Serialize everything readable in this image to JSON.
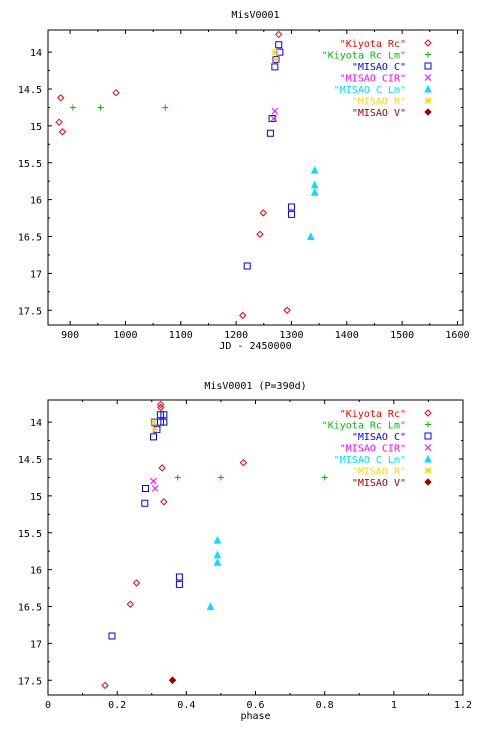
{
  "colors": {
    "kiyota_rc": "#ff0000",
    "kiyota_rc_lm": "#00c000",
    "misao_c": "#0000ff",
    "misao_cir": "#ff00ff",
    "misao_c_lm": "#00e0ff",
    "misao_r": "#ffd700",
    "misao_v": "#a00000"
  },
  "chart_data": [
    {
      "type": "scatter",
      "title": "MisV0001",
      "xlabel": "JD - 2450000",
      "ylabel": "",
      "xlim": [
        860,
        1610
      ],
      "ylim": [
        17.7,
        13.7
      ],
      "y_inverted": true,
      "xticks": [
        900,
        1000,
        1100,
        1200,
        1300,
        1400,
        1500,
        1600
      ],
      "yticks": [
        14,
        14.5,
        15,
        15.5,
        16,
        16.5,
        17,
        17.5
      ],
      "legend_position": "top-right",
      "series": [
        {
          "name": "\"Kiyota Rc\"",
          "marker": "diamond",
          "color_key": "kiyota_rc",
          "x": [
            880,
            883,
            886,
            983,
            1212,
            1243,
            1249,
            1292,
            1277
          ],
          "y": [
            14.95,
            14.62,
            15.08,
            14.55,
            17.57,
            16.47,
            16.18,
            17.5,
            13.76
          ]
        },
        {
          "name": "\"Kiyota Rc Lm\"",
          "marker": "plus",
          "color_key": "kiyota_rc_lm",
          "x": [
            905,
            955,
            1072
          ],
          "y": [
            14.75,
            14.75,
            14.75
          ]
        },
        {
          "name": "\"MISAO C\"",
          "marker": "square",
          "color_key": "misao_c",
          "x": [
            1262,
            1265,
            1270,
            1272,
            1277,
            1279,
            1220,
            1300,
            1300
          ],
          "y": [
            15.1,
            14.9,
            14.2,
            14.1,
            13.9,
            14.0,
            16.9,
            16.1,
            16.2
          ]
        },
        {
          "name": "\"MISAO CIR\"",
          "marker": "cross",
          "color_key": "misao_cir",
          "x": [
            1270,
            1268
          ],
          "y": [
            14.8,
            14.9
          ]
        },
        {
          "name": "\"MISAO C Lm\"",
          "marker": "triangle",
          "color_key": "misao_c_lm",
          "x": [
            1342,
            1342,
            1342,
            1335
          ],
          "y": [
            15.6,
            15.8,
            15.9,
            16.5
          ]
        },
        {
          "name": "\"MISAO R\"",
          "marker": "star",
          "color_key": "misao_r",
          "x": [
            1270,
            1272
          ],
          "y": [
            14.0,
            14.1
          ]
        },
        {
          "name": "\"MISAO V\"",
          "marker": "filled-diamond",
          "color_key": "misao_v",
          "x": [],
          "y": []
        }
      ]
    },
    {
      "type": "scatter",
      "title": "MisV0001 (P=390d)",
      "xlabel": "phase",
      "ylabel": "",
      "xlim": [
        0,
        1.2
      ],
      "ylim": [
        17.7,
        13.7
      ],
      "y_inverted": true,
      "xticks": [
        0,
        0.2,
        0.4,
        0.6,
        0.8,
        1,
        1.2
      ],
      "yticks": [
        14,
        14.5,
        15,
        15.5,
        16,
        16.5,
        17,
        17.5
      ],
      "legend_position": "top-right",
      "series": [
        {
          "name": "\"Kiyota Rc\"",
          "marker": "diamond",
          "color_key": "kiyota_rc",
          "x": [
            0.165,
            0.238,
            0.256,
            0.326,
            0.33,
            0.335,
            0.36,
            0.565,
            0.326
          ],
          "y": [
            17.57,
            16.47,
            16.18,
            13.76,
            14.62,
            15.08,
            17.5,
            14.55,
            13.8
          ]
        },
        {
          "name": "\"Kiyota Rc Lm\"",
          "marker": "plus",
          "color_key": "kiyota_rc_lm",
          "x": [
            0.375,
            0.5,
            0.8
          ],
          "y": [
            14.75,
            14.75,
            14.75
          ]
        },
        {
          "name": "\"MISAO C\"",
          "marker": "square",
          "color_key": "misao_c",
          "x": [
            0.185,
            0.28,
            0.282,
            0.305,
            0.308,
            0.315,
            0.325,
            0.325,
            0.335,
            0.335,
            0.38,
            0.38
          ],
          "y": [
            16.9,
            15.1,
            14.9,
            14.2,
            14.0,
            14.1,
            13.9,
            14.0,
            13.9,
            14.0,
            16.1,
            16.2
          ]
        },
        {
          "name": "\"MISAO CIR\"",
          "marker": "cross",
          "color_key": "misao_cir",
          "x": [
            0.305,
            0.31
          ],
          "y": [
            14.8,
            14.9
          ]
        },
        {
          "name": "\"MISAO C Lm\"",
          "marker": "triangle",
          "color_key": "misao_c_lm",
          "x": [
            0.49,
            0.49,
            0.49,
            0.47
          ],
          "y": [
            15.6,
            15.8,
            15.9,
            16.5
          ]
        },
        {
          "name": "\"MISAO R\"",
          "marker": "star",
          "color_key": "misao_r",
          "x": [
            0.305,
            0.31
          ],
          "y": [
            14.0,
            14.1
          ]
        },
        {
          "name": "\"MISAO V\"",
          "marker": "filled-diamond",
          "color_key": "misao_v",
          "x": [
            0.36
          ],
          "y": [
            17.5
          ]
        }
      ]
    }
  ]
}
